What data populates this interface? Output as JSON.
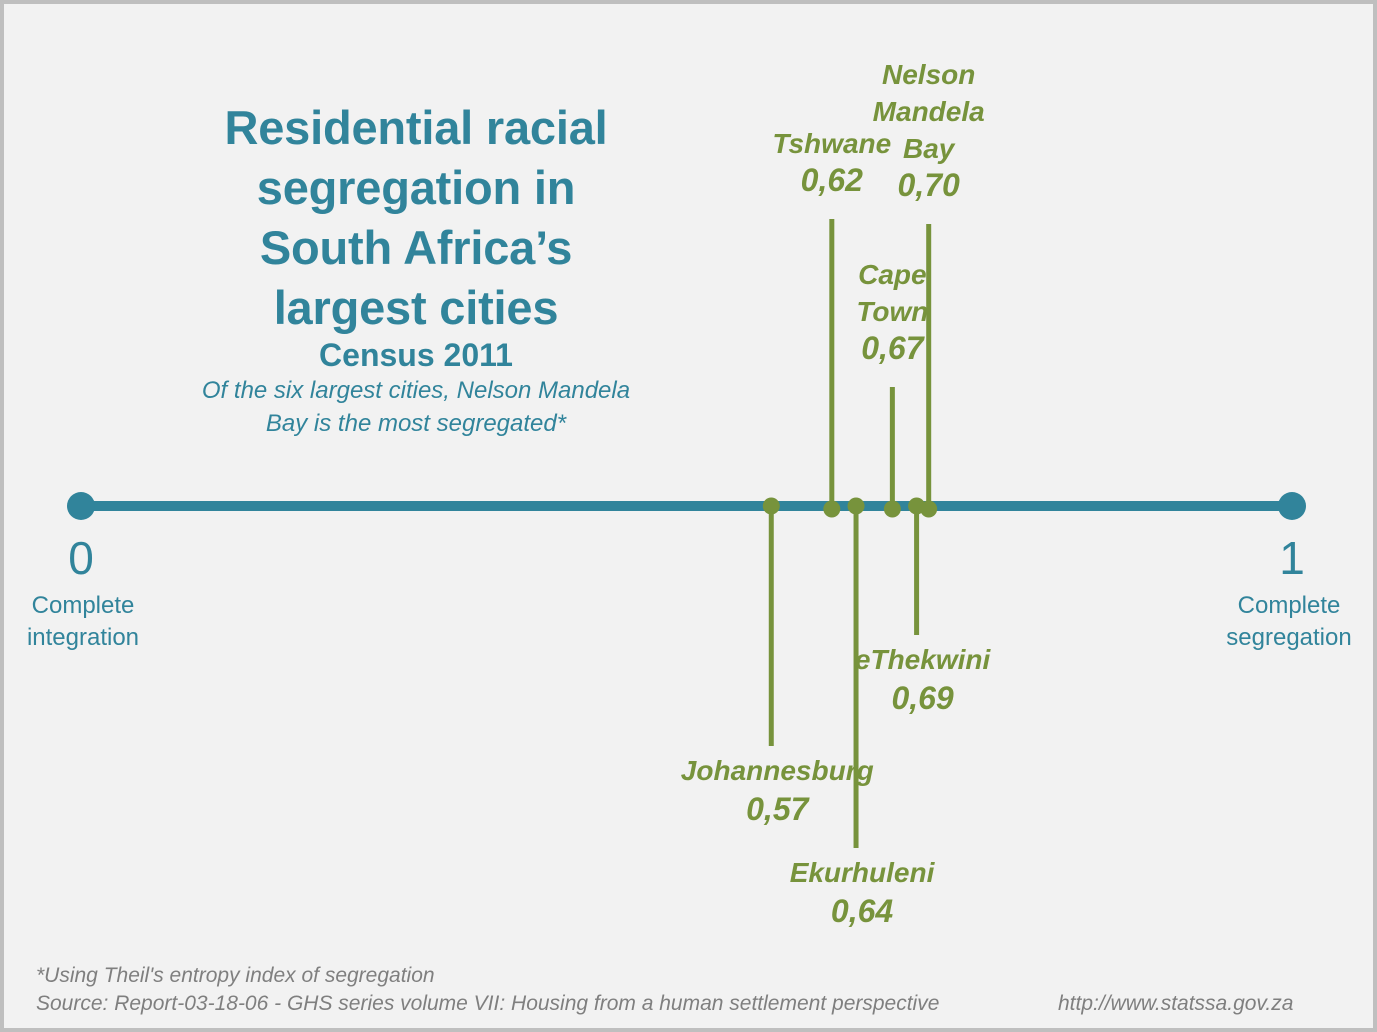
{
  "colors": {
    "axis": "#31849b",
    "marker": "#77933c",
    "background": "#f2f2f2",
    "footnote": "#7f7f7f"
  },
  "header": {
    "title_lines": [
      "Residential racial",
      "segregation in",
      "South Africa’s",
      "largest cities"
    ],
    "subtitle": "Census 2011",
    "description_lines": [
      "Of the six largest cities, Nelson Mandela",
      "Bay is the most segregated*"
    ]
  },
  "footer": {
    "note": "*Using Theil's entropy index of segregation",
    "source": "Source: Report-03-18-06 - GHS series volume VII: Housing from a human settlement perspective",
    "url": "http://www.statssa.gov.za"
  },
  "chart_data": {
    "type": "scatter",
    "title": "Residential racial segregation in South Africa’s largest cities",
    "subtitle": "Census 2011",
    "xlabel": "Theil's entropy index of segregation",
    "xlim": [
      0,
      1
    ],
    "axis_ends": [
      {
        "value": 0,
        "tick": "0",
        "label_lines": [
          "Complete",
          "integration"
        ]
      },
      {
        "value": 1,
        "tick": "1",
        "label_lines": [
          "Complete",
          "segregation"
        ]
      }
    ],
    "points": [
      {
        "city": "Johannesburg",
        "name_lines": [
          "Johannesburg"
        ],
        "value": 0.57,
        "value_label": "0,57",
        "side": "below",
        "level": 2
      },
      {
        "city": "Tshwane",
        "name_lines": [
          "Tshwane"
        ],
        "value": 0.62,
        "value_label": "0,62",
        "side": "above",
        "level": 2
      },
      {
        "city": "Ekurhuleni",
        "name_lines": [
          "Ekurhuleni"
        ],
        "value": 0.64,
        "value_label": "0,64",
        "side": "below",
        "level": 3
      },
      {
        "city": "Cape Town",
        "name_lines": [
          "Cape",
          "Town"
        ],
        "value": 0.67,
        "value_label": "0,67",
        "side": "above",
        "level": 1
      },
      {
        "city": "eThekwini",
        "name_lines": [
          "eThekwini"
        ],
        "value": 0.69,
        "value_label": "0,69",
        "side": "below",
        "level": 1
      },
      {
        "city": "Nelson Mandela Bay",
        "name_lines": [
          "Nelson",
          "Mandela",
          "Bay"
        ],
        "value": 0.7,
        "value_label": "0,70",
        "side": "above",
        "level": 3
      }
    ]
  }
}
